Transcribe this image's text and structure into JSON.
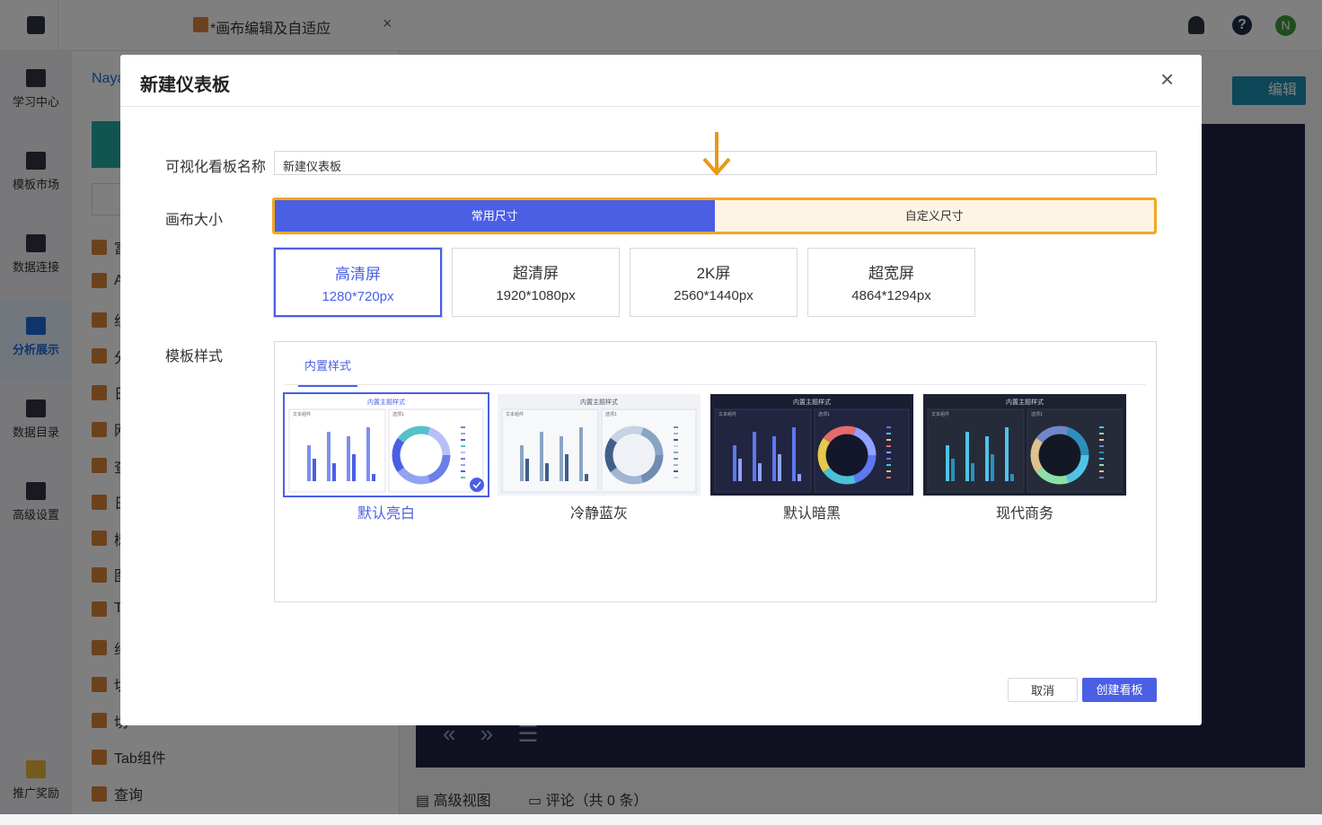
{
  "topbar": {
    "tab_title": "*画布编辑及自适应",
    "avatar": "N"
  },
  "sidebar": [
    "学习中心",
    "模板市场",
    "数据连接",
    "分析展示",
    "数据目录",
    "高级设置",
    "推广奖励"
  ],
  "panel": {
    "breadcrumb": "Naya",
    "items": [
      "富",
      "A",
      "组",
      "分",
      "日",
      "网",
      "查",
      "日",
      "树",
      "图",
      "T",
      "绍",
      "切",
      "切",
      "Tab组件",
      "查询"
    ]
  },
  "workspace": {
    "edit_button": "编辑",
    "view_button": "高级视图",
    "comments": "评论（共 0 条）"
  },
  "dialog": {
    "title": "新建仪表板",
    "name_label": "可视化看板名称",
    "name_value": "新建仪表板",
    "size_label": "画布大小",
    "size_tabs": [
      "常用尺寸",
      "自定义尺寸"
    ],
    "sizes": [
      {
        "name": "高清屏",
        "dims": "1280*720px"
      },
      {
        "name": "超清屏",
        "dims": "1920*1080px"
      },
      {
        "name": "2K屏",
        "dims": "2560*1440px"
      },
      {
        "name": "超宽屏",
        "dims": "4864*1294px"
      }
    ],
    "template_label": "模板样式",
    "template_tab": "内置样式",
    "thumbnail": {
      "title": "内置主题样式",
      "text_label": "文本组件",
      "select_label": "选项1"
    },
    "templates": [
      "默认亮白",
      "冷静蓝灰",
      "默认暗黑",
      "现代商务"
    ],
    "cancel": "取消",
    "create": "创建看板"
  }
}
